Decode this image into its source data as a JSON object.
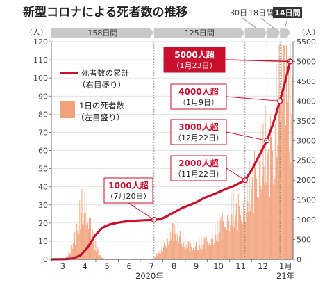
{
  "title": "新型コロナによる死者数の推移",
  "chart_data": {
    "type": "bar+line",
    "left_axis": {
      "unit_label": "（人）",
      "min": 0,
      "max": 120,
      "ticks": [
        0,
        10,
        20,
        30,
        40,
        50,
        60,
        70,
        80,
        90,
        100,
        110,
        120
      ]
    },
    "right_axis": {
      "unit_label": "（人）",
      "min": 0,
      "max": 5500,
      "ticks": [
        0,
        500,
        1000,
        1500,
        2000,
        2500,
        3000,
        3500,
        4000,
        4500,
        5000,
        5500
      ]
    },
    "x_month_labels": [
      "3",
      "4",
      "5",
      "6",
      "7",
      "8",
      "9",
      "10",
      "11",
      "12",
      "1月"
    ],
    "x_year_labels": [
      "2020年",
      "21年"
    ],
    "legend": [
      {
        "label_line1": "死者数の累計",
        "label_line2": "（右目盛り）",
        "color": "#c8102e"
      },
      {
        "label_line1": "1日の死者数",
        "label_line2": "（左目盛り）",
        "color": "#f2a27b"
      }
    ],
    "periods": [
      {
        "label": "158日間",
        "dark": false
      },
      {
        "label": "125日間",
        "dark": false
      },
      {
        "label": "30日間",
        "dark": false
      },
      {
        "label": "18日間",
        "dark": false
      },
      {
        "label": "14日間",
        "dark": true
      }
    ],
    "milestones": [
      {
        "main": "1000人超",
        "sub": "（7月20日）",
        "day": 141,
        "cumulative": 1000
      },
      {
        "main": "2000人超",
        "sub": "（11月22日）",
        "day": 266,
        "cumulative": 2000
      },
      {
        "main": "3000人超",
        "sub": "（12月22日）",
        "day": 296,
        "cumulative": 3000
      },
      {
        "main": "4000人超",
        "sub": "（1月9日）",
        "day": 314,
        "cumulative": 4000
      },
      {
        "main": "5000人超",
        "sub": "（1月23日）",
        "day": 328,
        "cumulative": 5000,
        "highlight": true
      }
    ],
    "cumulative_series": [
      [
        0,
        0
      ],
      [
        20,
        5
      ],
      [
        30,
        25
      ],
      [
        40,
        100
      ],
      [
        50,
        300
      ],
      [
        60,
        600
      ],
      [
        70,
        800
      ],
      [
        80,
        880
      ],
      [
        90,
        920
      ],
      [
        100,
        950
      ],
      [
        110,
        970
      ],
      [
        120,
        980
      ],
      [
        130,
        990
      ],
      [
        141,
        1000
      ],
      [
        150,
        1010
      ],
      [
        160,
        1100
      ],
      [
        170,
        1200
      ],
      [
        180,
        1300
      ],
      [
        190,
        1370
      ],
      [
        200,
        1450
      ],
      [
        210,
        1550
      ],
      [
        220,
        1620
      ],
      [
        230,
        1700
      ],
      [
        240,
        1780
      ],
      [
        250,
        1850
      ],
      [
        260,
        1940
      ],
      [
        266,
        2000
      ],
      [
        275,
        2250
      ],
      [
        285,
        2600
      ],
      [
        296,
        3000
      ],
      [
        305,
        3450
      ],
      [
        314,
        4000
      ],
      [
        320,
        4400
      ],
      [
        328,
        5000
      ]
    ],
    "daily_waves": [
      {
        "center": 45,
        "width": 14,
        "peak": 30
      },
      {
        "center": 148,
        "width": 5,
        "peak": 1
      },
      {
        "center": 168,
        "width": 16,
        "peak": 16
      },
      {
        "center": 210,
        "width": 28,
        "peak": 9
      },
      {
        "center": 245,
        "width": 20,
        "peak": 20
      },
      {
        "center": 295,
        "width": 32,
        "peak": 60
      },
      {
        "center": 322,
        "width": 12,
        "peak": 100
      }
    ]
  }
}
